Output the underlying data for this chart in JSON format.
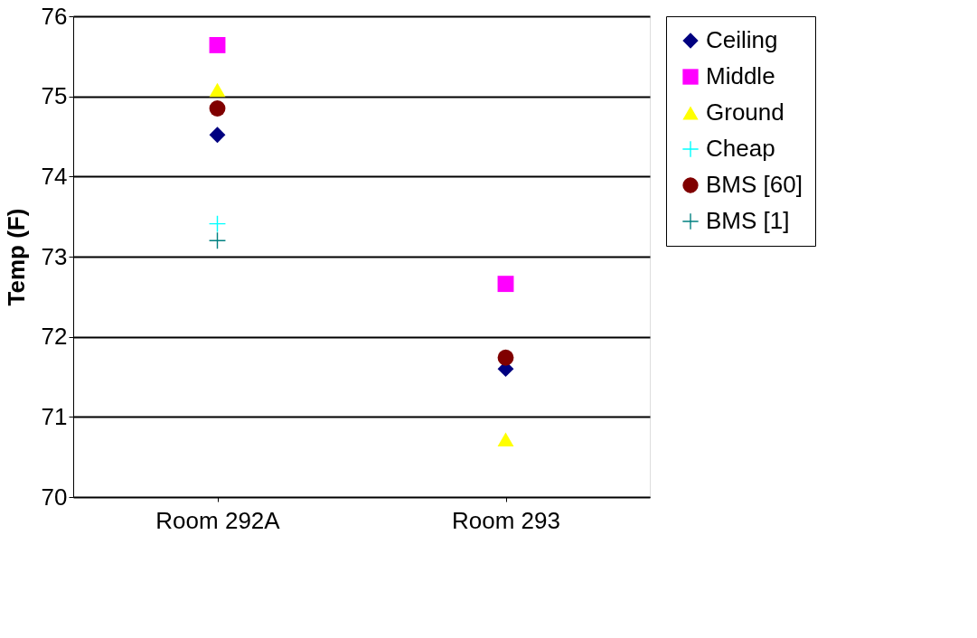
{
  "chart_data": {
    "type": "scatter",
    "ylabel": "Temp (F)",
    "categories": [
      "Room 292A",
      "Room 293"
    ],
    "ylim": [
      70,
      76
    ],
    "yticks": [
      70,
      71,
      72,
      73,
      74,
      75,
      76
    ],
    "grid": "y",
    "legend": "right",
    "series": [
      {
        "name": "Ceiling",
        "color": "#000080",
        "marker": "diamond",
        "values": [
          74.52,
          71.6
        ]
      },
      {
        "name": "Middle",
        "color": "#ff00ff",
        "marker": "square",
        "values": [
          75.64,
          72.66
        ]
      },
      {
        "name": "Ground",
        "color": "#ffff00",
        "marker": "triangle",
        "values": [
          75.08,
          70.72
        ]
      },
      {
        "name": "Cheap",
        "color": "#00ffff",
        "marker": "cross",
        "values": [
          73.41,
          null
        ]
      },
      {
        "name": "BMS [60]",
        "color": "#800000",
        "marker": "circle",
        "values": [
          74.85,
          71.74
        ]
      },
      {
        "name": "BMS [1]",
        "color": "#008080",
        "marker": "cross",
        "values": [
          73.2,
          null
        ]
      }
    ]
  }
}
